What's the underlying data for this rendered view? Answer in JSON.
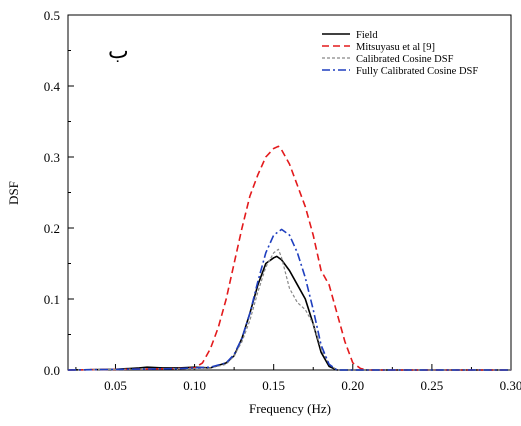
{
  "chart_data": {
    "type": "line",
    "panel_label": "ب",
    "xlabel": "Frequency (Hz)",
    "ylabel": "DSF",
    "xlim": [
      0.02,
      0.3
    ],
    "ylim": [
      0,
      0.5
    ],
    "x_ticks": [
      "0.05",
      "0.10",
      "0.15",
      "0.20",
      "0.25",
      "0.30"
    ],
    "x_tick_values": [
      0.05,
      0.1,
      0.15,
      0.2,
      0.25,
      0.3
    ],
    "y_ticks": [
      "0.0",
      "0.1",
      "0.2",
      "0.3",
      "0.4",
      "0.5"
    ],
    "y_tick_values": [
      0.0,
      0.1,
      0.2,
      0.3,
      0.4,
      0.5
    ],
    "legend_position": "top-right",
    "grid": false,
    "series": [
      {
        "name": "Field",
        "color": "#000000",
        "style": "solid",
        "x": [
          0.02,
          0.05,
          0.065,
          0.07,
          0.08,
          0.09,
          0.1,
          0.11,
          0.12,
          0.125,
          0.13,
          0.135,
          0.14,
          0.145,
          0.15,
          0.152,
          0.155,
          0.16,
          0.165,
          0.17,
          0.175,
          0.18,
          0.185,
          0.19,
          0.2,
          0.25,
          0.3
        ],
        "y": [
          0.0,
          0.001,
          0.003,
          0.004,
          0.003,
          0.003,
          0.004,
          0.003,
          0.01,
          0.02,
          0.045,
          0.08,
          0.12,
          0.15,
          0.158,
          0.16,
          0.155,
          0.14,
          0.12,
          0.1,
          0.065,
          0.025,
          0.005,
          0.0,
          0.0,
          0.0,
          0.0
        ]
      },
      {
        "name": "Mitsuyasu et al [9]",
        "color": "#e31a1c",
        "style": "dashed",
        "x": [
          0.02,
          0.09,
          0.1,
          0.105,
          0.11,
          0.115,
          0.12,
          0.125,
          0.13,
          0.135,
          0.14,
          0.145,
          0.15,
          0.153,
          0.155,
          0.16,
          0.165,
          0.17,
          0.175,
          0.18,
          0.185,
          0.19,
          0.195,
          0.2,
          0.205,
          0.21,
          0.25,
          0.3
        ],
        "y": [
          0.0,
          0.002,
          0.003,
          0.01,
          0.03,
          0.06,
          0.1,
          0.15,
          0.2,
          0.245,
          0.275,
          0.3,
          0.312,
          0.315,
          0.31,
          0.29,
          0.26,
          0.23,
          0.19,
          0.14,
          0.12,
          0.08,
          0.04,
          0.01,
          0.002,
          0.0,
          0.0,
          0.0
        ]
      },
      {
        "name": "Calibrated Cosine DSF",
        "color": "#888888",
        "style": "dotted",
        "x": [
          0.02,
          0.09,
          0.1,
          0.11,
          0.12,
          0.125,
          0.13,
          0.135,
          0.14,
          0.145,
          0.15,
          0.153,
          0.155,
          0.16,
          0.165,
          0.17,
          0.175,
          0.18,
          0.185,
          0.19,
          0.25,
          0.3
        ],
        "y": [
          0.0,
          0.002,
          0.002,
          0.003,
          0.008,
          0.02,
          0.04,
          0.07,
          0.11,
          0.145,
          0.165,
          0.17,
          0.158,
          0.115,
          0.095,
          0.085,
          0.065,
          0.03,
          0.008,
          0.0,
          0.0,
          0.0
        ]
      },
      {
        "name": "Fully Calibrated Cosine DSF",
        "color": "#1f3fbf",
        "style": "dashdot",
        "x": [
          0.02,
          0.09,
          0.1,
          0.11,
          0.12,
          0.125,
          0.13,
          0.135,
          0.14,
          0.145,
          0.15,
          0.155,
          0.16,
          0.165,
          0.17,
          0.175,
          0.18,
          0.185,
          0.19,
          0.25,
          0.3
        ],
        "y": [
          0.0,
          0.002,
          0.003,
          0.004,
          0.01,
          0.022,
          0.045,
          0.08,
          0.125,
          0.165,
          0.19,
          0.198,
          0.19,
          0.165,
          0.13,
          0.085,
          0.035,
          0.008,
          0.0,
          0.0,
          0.0
        ]
      }
    ]
  }
}
